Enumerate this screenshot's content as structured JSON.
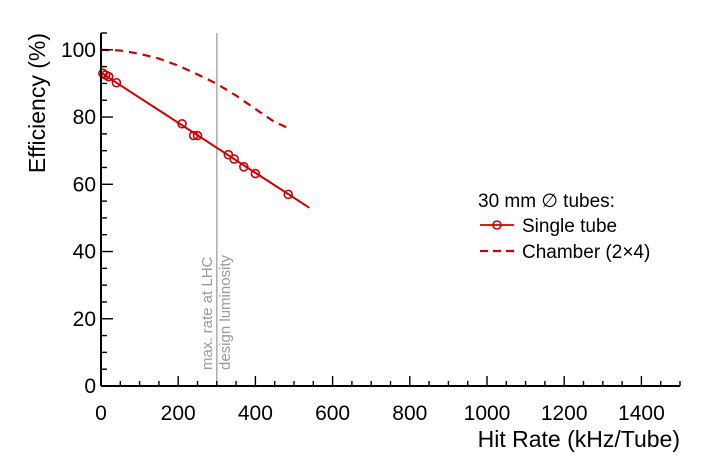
{
  "chart_data": {
    "type": "line",
    "xlabel": "Hit Rate (kHz/Tube)",
    "ylabel": "Efficiency (%)",
    "xlim": [
      0,
      1500
    ],
    "ylim": [
      0,
      105
    ],
    "x_ticks": [
      0,
      200,
      400,
      600,
      800,
      1000,
      1200,
      1400
    ],
    "y_ticks": [
      0,
      20,
      40,
      60,
      80,
      100
    ],
    "grid": false,
    "legend": {
      "title": "30 mm ∅ tubes:",
      "position": "right",
      "entries": [
        {
          "key": "single_tube",
          "label": "Single tube"
        },
        {
          "key": "chamber",
          "label": "Chamber (2×4)"
        }
      ]
    },
    "colors": {
      "series": "#cc0000",
      "annotation_line": "#b0b0b0",
      "annotation_text": "#9a9a9a"
    },
    "series": [
      {
        "key": "single_tube",
        "name": "Single tube",
        "style": "markers-with-fit",
        "points": [
          {
            "x": 5,
            "y": 93
          },
          {
            "x": 12,
            "y": 92.5
          },
          {
            "x": 20,
            "y": 92
          },
          {
            "x": 40,
            "y": 90.2
          },
          {
            "x": 210,
            "y": 78
          },
          {
            "x": 240,
            "y": 74.5
          },
          {
            "x": 250,
            "y": 74.5
          },
          {
            "x": 330,
            "y": 68.8
          },
          {
            "x": 345,
            "y": 67.5
          },
          {
            "x": 370,
            "y": 65.2
          },
          {
            "x": 400,
            "y": 63.2
          },
          {
            "x": 485,
            "y": 57
          }
        ],
        "fit": [
          {
            "x": 0,
            "y": 93.2
          },
          {
            "x": 540,
            "y": 53
          }
        ]
      },
      {
        "key": "chamber",
        "name": "Chamber (2×4)",
        "style": "dashed",
        "points": [
          {
            "x": 0,
            "y": 100
          },
          {
            "x": 50,
            "y": 99.8
          },
          {
            "x": 100,
            "y": 98.8
          },
          {
            "x": 150,
            "y": 97.4
          },
          {
            "x": 200,
            "y": 95.3
          },
          {
            "x": 250,
            "y": 92.7
          },
          {
            "x": 300,
            "y": 89.9
          },
          {
            "x": 350,
            "y": 86.4
          },
          {
            "x": 400,
            "y": 82.4
          },
          {
            "x": 450,
            "y": 78.5
          },
          {
            "x": 490,
            "y": 76.5
          }
        ]
      }
    ],
    "annotations": [
      {
        "x": 300,
        "lines": [
          "max. rate at LHC",
          "design luminosity"
        ]
      }
    ]
  }
}
